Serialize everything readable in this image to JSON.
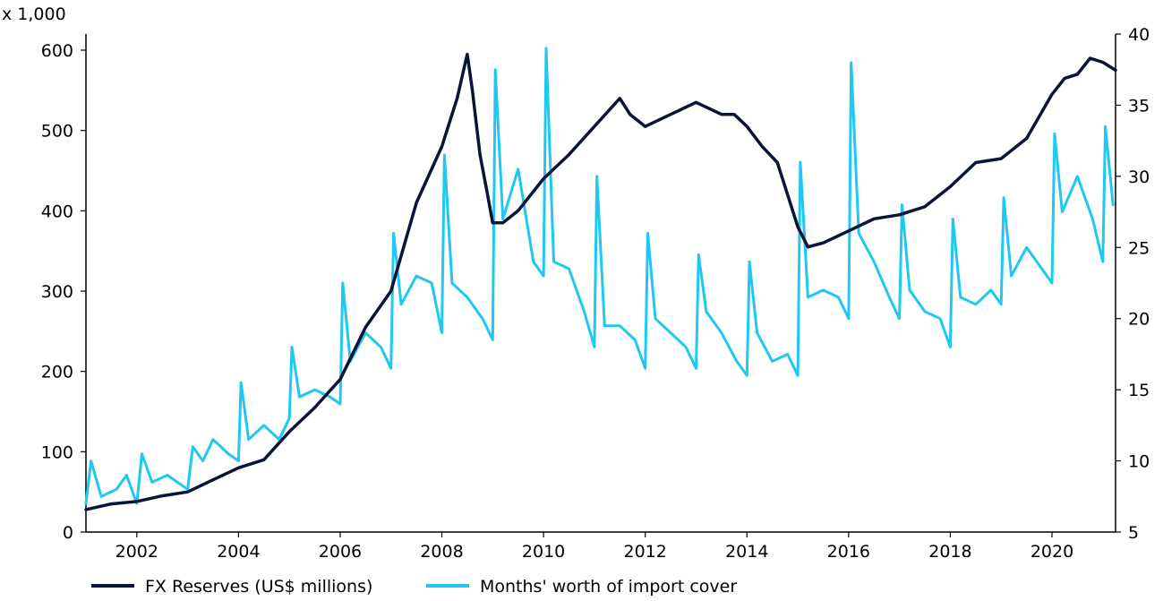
{
  "chart_data": {
    "type": "line",
    "title": "",
    "y_left_unit_label": "x 1,000",
    "xlim": [
      2001.0,
      2021.25
    ],
    "x_ticks": [
      "2002",
      "2004",
      "2006",
      "2008",
      "2010",
      "2012",
      "2014",
      "2016",
      "2018",
      "2020"
    ],
    "y_left": {
      "ylim": [
        0,
        620
      ],
      "ticks": [
        "0",
        "100",
        "200",
        "300",
        "400",
        "500",
        "600"
      ]
    },
    "y_right": {
      "ylim": [
        5,
        40
      ],
      "ticks": [
        "5",
        "10",
        "15",
        "20",
        "25",
        "30",
        "35",
        "40"
      ]
    },
    "grid": false,
    "legend_position": "bottom",
    "series": [
      {
        "name": "FX Reserves (US$ millions)",
        "axis": "left",
        "color": "#0a1439",
        "x": [
          2001.0,
          2001.5,
          2002.0,
          2002.5,
          2003.0,
          2003.5,
          2004.0,
          2004.5,
          2005.0,
          2005.5,
          2006.0,
          2006.5,
          2007.0,
          2007.5,
          2008.0,
          2008.3,
          2008.5,
          2008.6,
          2008.75,
          2008.9,
          2009.0,
          2009.2,
          2009.5,
          2010.0,
          2010.5,
          2011.0,
          2011.5,
          2011.7,
          2012.0,
          2012.5,
          2013.0,
          2013.5,
          2013.75,
          2014.0,
          2014.3,
          2014.6,
          2014.8,
          2015.0,
          2015.2,
          2015.5,
          2016.0,
          2016.5,
          2017.0,
          2017.5,
          2018.0,
          2018.5,
          2019.0,
          2019.5,
          2020.0,
          2020.25,
          2020.5,
          2020.75,
          2021.0,
          2021.25
        ],
        "values": [
          28,
          35,
          38,
          45,
          50,
          65,
          80,
          90,
          125,
          155,
          190,
          255,
          300,
          410,
          480,
          540,
          595,
          550,
          470,
          420,
          385,
          385,
          400,
          440,
          470,
          505,
          540,
          520,
          505,
          520,
          535,
          520,
          520,
          505,
          480,
          460,
          420,
          380,
          355,
          360,
          375,
          390,
          395,
          405,
          430,
          460,
          465,
          490,
          545,
          565,
          570,
          590,
          585,
          575
        ]
      },
      {
        "name": "Months' worth of import cover",
        "axis": "right",
        "color": "#1ec8f2",
        "x": [
          2001.0,
          2001.1,
          2001.3,
          2001.6,
          2001.8,
          2002.0,
          2002.1,
          2002.3,
          2002.6,
          2002.8,
          2003.0,
          2003.1,
          2003.3,
          2003.5,
          2003.8,
          2004.0,
          2004.05,
          2004.2,
          2004.5,
          2004.8,
          2005.0,
          2005.05,
          2005.2,
          2005.5,
          2005.8,
          2006.0,
          2006.05,
          2006.2,
          2006.5,
          2006.8,
          2007.0,
          2007.05,
          2007.2,
          2007.5,
          2007.8,
          2008.0,
          2008.05,
          2008.2,
          2008.5,
          2008.8,
          2009.0,
          2009.05,
          2009.2,
          2009.5,
          2009.8,
          2010.0,
          2010.05,
          2010.2,
          2010.5,
          2010.8,
          2011.0,
          2011.05,
          2011.2,
          2011.5,
          2011.8,
          2012.0,
          2012.05,
          2012.2,
          2012.5,
          2012.8,
          2013.0,
          2013.05,
          2013.2,
          2013.5,
          2013.8,
          2014.0,
          2014.05,
          2014.2,
          2014.5,
          2014.8,
          2015.0,
          2015.05,
          2015.2,
          2015.5,
          2015.8,
          2016.0,
          2016.05,
          2016.2,
          2016.5,
          2016.8,
          2017.0,
          2017.05,
          2017.2,
          2017.5,
          2017.8,
          2018.0,
          2018.05,
          2018.2,
          2018.5,
          2018.8,
          2019.0,
          2019.05,
          2019.2,
          2019.5,
          2019.8,
          2020.0,
          2020.05,
          2020.2,
          2020.5,
          2020.8,
          2021.0,
          2021.05,
          2021.2
        ],
        "values": [
          7.0,
          10.0,
          7.5,
          8.0,
          9.0,
          7.0,
          10.5,
          8.5,
          9.0,
          8.5,
          8.0,
          11.0,
          10.0,
          11.5,
          10.5,
          10.0,
          15.5,
          11.5,
          12.5,
          11.5,
          13.0,
          18.0,
          14.5,
          15.0,
          14.5,
          14.0,
          22.5,
          17.0,
          19.0,
          18.0,
          16.5,
          26.0,
          21.0,
          23.0,
          22.5,
          19.0,
          31.5,
          22.5,
          21.5,
          20.0,
          18.5,
          37.5,
          27.0,
          30.5,
          24.0,
          23.0,
          39.0,
          24.0,
          23.5,
          20.5,
          18.0,
          30.0,
          19.5,
          19.5,
          18.5,
          16.5,
          26.0,
          20.0,
          19.0,
          18.0,
          16.5,
          24.5,
          20.5,
          19.0,
          17.0,
          16.0,
          24.0,
          19.0,
          17.0,
          17.5,
          16.0,
          31.0,
          21.5,
          22.0,
          21.5,
          20.0,
          38.0,
          26.0,
          24.0,
          21.5,
          20.0,
          28.0,
          22.0,
          20.5,
          20.0,
          18.0,
          27.0,
          21.5,
          21.0,
          22.0,
          21.0,
          28.5,
          23.0,
          25.0,
          23.5,
          22.5,
          33.0,
          27.5,
          30.0,
          27.0,
          24.0,
          33.5,
          28.0
        ]
      }
    ]
  }
}
